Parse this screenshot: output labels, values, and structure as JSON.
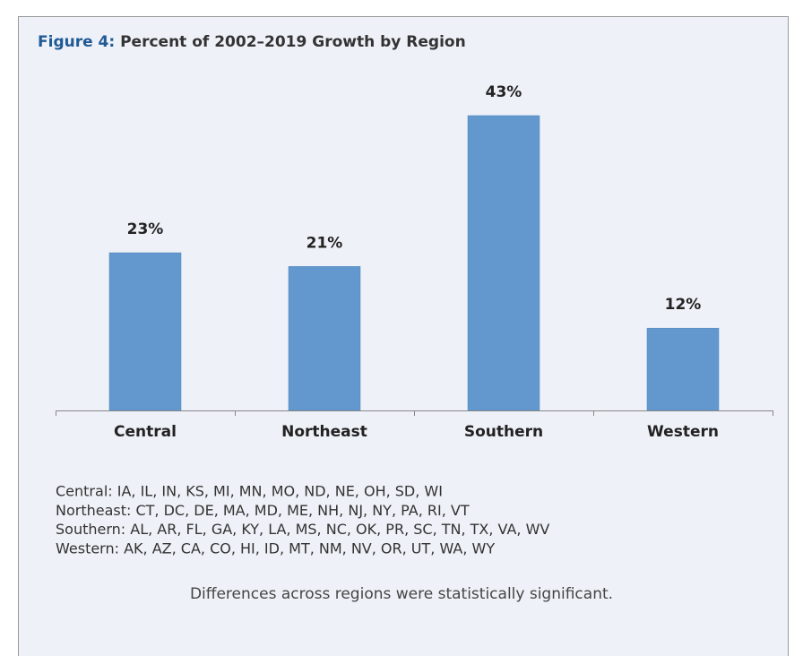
{
  "chart_data": {
    "type": "bar",
    "figure_label": "Figure 4:",
    "title": "Percent of 2002–2019 Growth by Region",
    "categories": [
      "Central",
      "Northeast",
      "Southern",
      "Western"
    ],
    "values": [
      23,
      21,
      43,
      12
    ],
    "value_labels": [
      "23%",
      "21%",
      "43%",
      "12%"
    ],
    "color": "#6298cd",
    "notes": [
      "Central: IA, IL, IN, KS, MI, MN, MO, ND, NE, OH, SD, WI",
      "Northeast: CT, DC, DE, MA, MD, ME, NH, NJ, NY, PA, RI, VT",
      "Southern: AL, AR, FL, GA, KY, LA, MS, NC, OK, PR, SC, TN, TX, VA, WV",
      "Western: AK, AZ, CA, CO, HI, ID, MT, NM, NV, OR, UT, WA, WY"
    ],
    "footnote": "Differences across regions were statistically significant."
  }
}
